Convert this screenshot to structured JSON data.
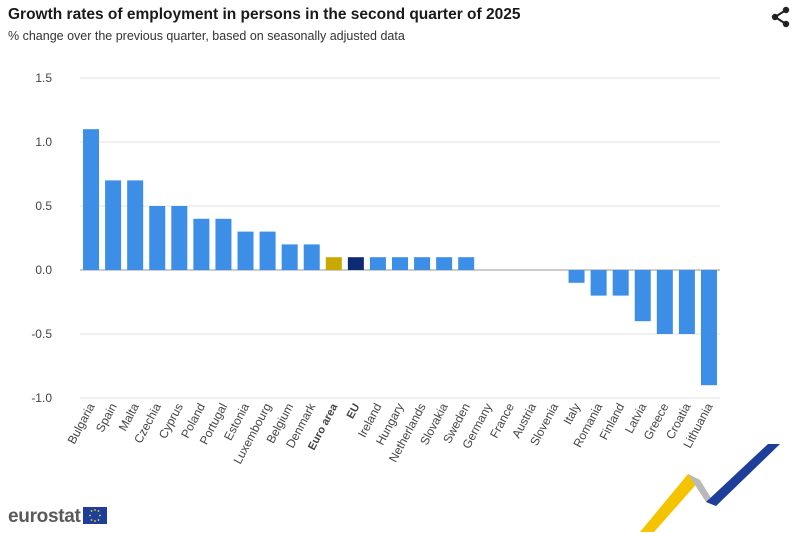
{
  "header": {
    "title": "Growth rates of employment in persons in the second quarter of 2025",
    "subtitle": "% change over the previous quarter, based on seasonally adjusted data"
  },
  "footer": {
    "brand": "eurostat"
  },
  "icons": {
    "share": "share-icon",
    "flag": "eu-flag-icon"
  },
  "colors": {
    "bar": "#3c8ee6",
    "euro_area": "#c9a800",
    "eu": "#0e2a73",
    "grid": "#e3e3e3",
    "zero_line": "#999999"
  },
  "chart_data": {
    "type": "bar",
    "title": "Growth rates of employment in persons in the second quarter of 2025",
    "subtitle": "% change over the previous quarter, based on seasonally adjusted data",
    "categories": [
      "Bulgaria",
      "Spain",
      "Malta",
      "Czechia",
      "Cyprus",
      "Poland",
      "Portugal",
      "Estonia",
      "Luxembourg",
      "Belgium",
      "Denmark",
      "Euro area",
      "EU",
      "Ireland",
      "Hungary",
      "Netherlands",
      "Slovakia",
      "Sweden",
      "Germany",
      "France",
      "Austria",
      "Slovenia",
      "Italy",
      "Romania",
      "Finland",
      "Latvia",
      "Greece",
      "Croatia",
      "Lithuania"
    ],
    "values": [
      1.1,
      0.7,
      0.7,
      0.5,
      0.5,
      0.4,
      0.4,
      0.3,
      0.3,
      0.2,
      0.2,
      0.1,
      0.1,
      0.1,
      0.1,
      0.1,
      0.1,
      0.1,
      0.0,
      0.0,
      0.0,
      0.0,
      -0.1,
      -0.2,
      -0.2,
      -0.4,
      -0.5,
      -0.5,
      -0.9
    ],
    "highlight": {
      "Euro area": "#c9a800",
      "EU": "#0e2a73"
    },
    "bold_categories": [
      "Euro area",
      "EU"
    ],
    "yticks": [
      "1.5",
      "1.0",
      "0.5",
      "0.0",
      "-0.5",
      "-1.0"
    ],
    "ylim": [
      -1.0,
      1.5
    ],
    "grid": true,
    "legend": "none"
  }
}
